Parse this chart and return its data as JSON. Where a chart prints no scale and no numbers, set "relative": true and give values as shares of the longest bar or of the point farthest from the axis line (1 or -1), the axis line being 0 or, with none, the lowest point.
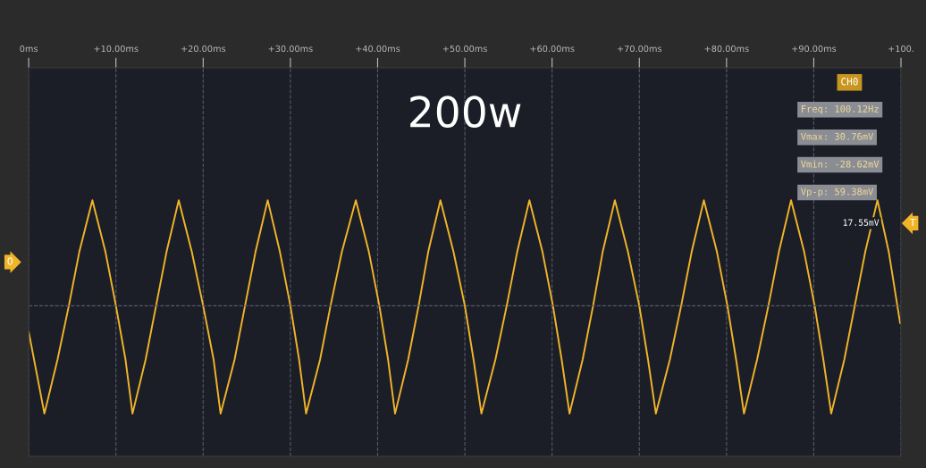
{
  "chart_data": {
    "type": "line",
    "title": "200w",
    "relative": true,
    "x": [
      0,
      1.8,
      3.3,
      4.6,
      5.8,
      7.3,
      8.8,
      10.0,
      11.1,
      11.9,
      13.4,
      14.6,
      15.8,
      17.2,
      18.7,
      20.0,
      21.2,
      22.0,
      23.6,
      24.8,
      26.0,
      27.4,
      28.8,
      30.0,
      31.0,
      31.8,
      33.4,
      34.6,
      35.9,
      37.5,
      39.0,
      40.2,
      41.2,
      42.0,
      43.5,
      44.7,
      45.8,
      47.2,
      48.7,
      50.0,
      51.0,
      51.9,
      53.5,
      54.8,
      56.0,
      57.4,
      58.9,
      60.1,
      61.1,
      62.0,
      63.5,
      64.7,
      65.8,
      67.2,
      68.7,
      70.0,
      71.0,
      71.9,
      73.5,
      74.8,
      76.0,
      77.4,
      78.9,
      80.1,
      81.1,
      82.0,
      83.5,
      84.8,
      86.0,
      87.4,
      88.9,
      90.1,
      91.1,
      92.0,
      93.5,
      94.7,
      95.9,
      97.3,
      98.6,
      99.9
    ],
    "series": [
      {
        "color": "#f0b429",
        "values": [
          -0.24,
          -1.0,
          -0.5,
          0,
          0.5,
          0.98,
          0.5,
          0,
          -0.5,
          -1.0,
          -0.5,
          0,
          0.5,
          0.98,
          0.5,
          0,
          -0.5,
          -1.0,
          -0.5,
          0,
          0.5,
          0.98,
          0.5,
          0,
          -0.5,
          -1.0,
          -0.5,
          0,
          0.5,
          0.98,
          0.5,
          0,
          -0.5,
          -1.0,
          -0.5,
          0,
          0.5,
          0.98,
          0.5,
          0,
          -0.5,
          -1.0,
          -0.5,
          0,
          0.5,
          0.98,
          0.5,
          0,
          -0.5,
          -1.0,
          -0.5,
          0,
          0.5,
          0.98,
          0.5,
          0,
          -0.5,
          -1.0,
          -0.5,
          0,
          0.5,
          0.98,
          0.5,
          0,
          -0.5,
          -1.0,
          -0.5,
          0,
          0.5,
          0.98,
          0.5,
          0,
          -0.5,
          -1.0,
          -0.5,
          0,
          0.5,
          0.98,
          0.5,
          -0.16
        ]
      }
    ],
    "xlim": [
      0,
      100
    ],
    "xticks": [
      {
        "value": 0,
        "label": "0ms"
      },
      {
        "value": 10,
        "label": "+10.00ms"
      },
      {
        "value": 20,
        "label": "+20.00ms"
      },
      {
        "value": 30,
        "label": "+30.00ms"
      },
      {
        "value": 40,
        "label": "+40.00ms"
      },
      {
        "value": 50,
        "label": "+50.00ms"
      },
      {
        "value": 60,
        "label": "+60.00ms"
      },
      {
        "value": 70,
        "label": "+70.00ms"
      },
      {
        "value": 80,
        "label": "+80.00ms"
      },
      {
        "value": 90,
        "label": "+90.00ms"
      },
      {
        "value": 100,
        "label": "+100."
      }
    ],
    "grid": "x",
    "marker": "none",
    "line_style": "solid",
    "legend": false,
    "annotations": [
      "CH0",
      "Freq: 100.12Hz",
      "Vmax: 30.76mV",
      "Vmin: -28.62mV",
      "Vp-p: 59.38mV",
      "17.55mV",
      "T",
      "0"
    ]
  }
}
